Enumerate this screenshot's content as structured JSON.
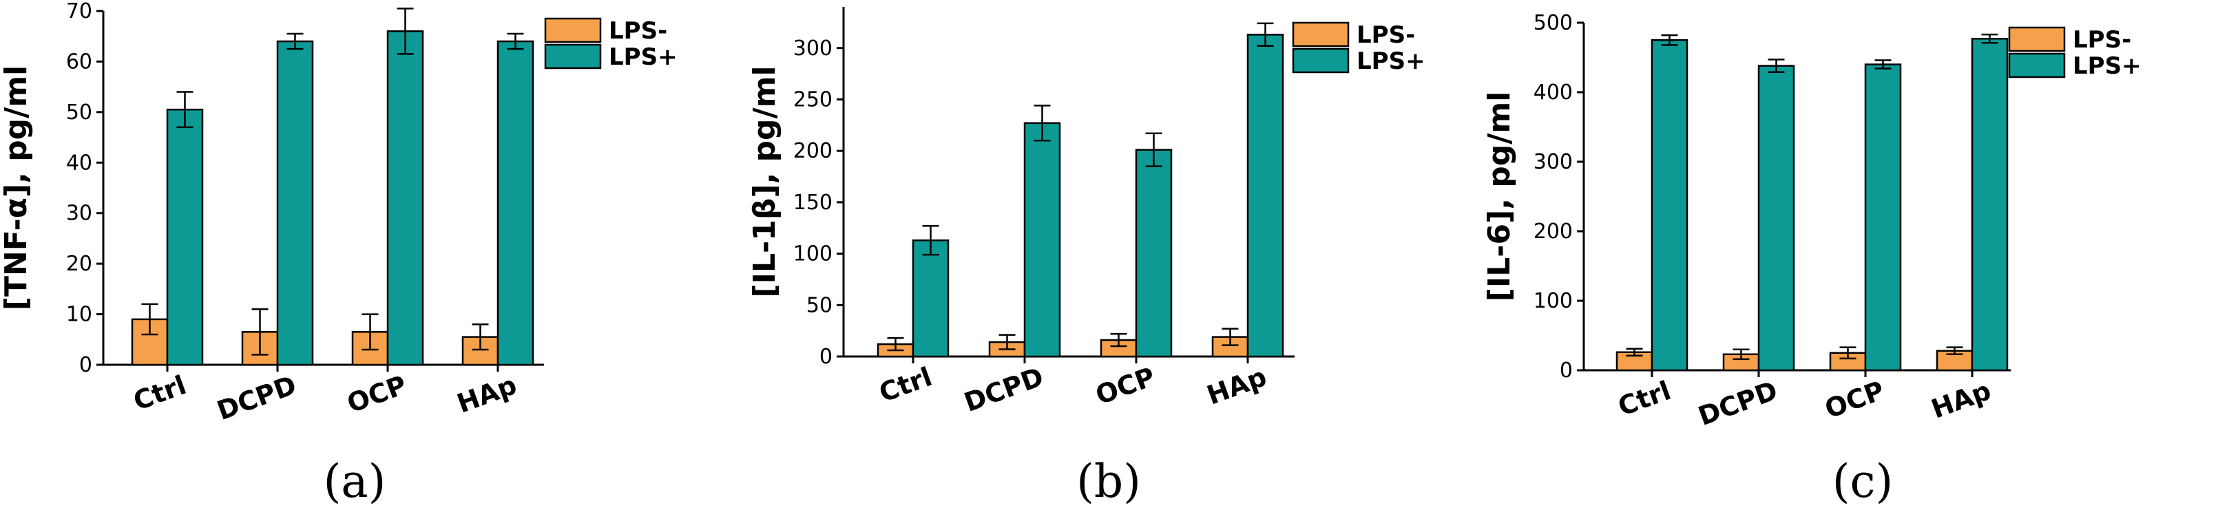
{
  "colors": {
    "lps_minus": "#F5A04A",
    "lps_plus": "#0E9A94"
  },
  "chart_data": [
    {
      "type": "bar",
      "panel_label": "(a)",
      "ylabel": "[TNF-α], pg/ml",
      "categories": [
        "Ctrl",
        "DCPD",
        "OCP",
        "HAp"
      ],
      "ylim": [
        0,
        70
      ],
      "yticks": [
        0,
        10,
        20,
        30,
        40,
        50,
        60,
        70
      ],
      "series": [
        {
          "name": "LPS-",
          "values": [
            9,
            6.5,
            6.5,
            5.5
          ],
          "errors": [
            3,
            4.5,
            3.5,
            2.5
          ]
        },
        {
          "name": "LPS+",
          "values": [
            50.5,
            64,
            66,
            64
          ],
          "errors": [
            3.5,
            1.5,
            4.5,
            1.5
          ]
        }
      ],
      "legend": "top-right"
    },
    {
      "type": "bar",
      "panel_label": "(b)",
      "ylabel": "[IL-1β], pg/ml",
      "categories": [
        "Ctrl",
        "DCPD",
        "OCP",
        "HAp"
      ],
      "ylim": [
        0,
        340
      ],
      "yticks": [
        0,
        50,
        100,
        150,
        200,
        250,
        300
      ],
      "series": [
        {
          "name": "LPS-",
          "values": [
            12,
            14,
            16,
            19
          ],
          "errors": [
            6,
            7,
            6,
            8
          ]
        },
        {
          "name": "LPS+",
          "values": [
            113,
            227,
            201,
            313
          ],
          "errors": [
            14,
            17,
            16,
            11
          ]
        }
      ],
      "legend": "top-right"
    },
    {
      "type": "bar",
      "panel_label": "(c)",
      "ylabel": "[IL-6], pg/ml",
      "categories": [
        "Ctrl",
        "DCPD",
        "OCP",
        "HAp"
      ],
      "ylim": [
        0,
        500
      ],
      "yticks": [
        0,
        100,
        200,
        300,
        400,
        500
      ],
      "series": [
        {
          "name": "LPS-",
          "values": [
            26,
            23,
            25,
            28
          ],
          "errors": [
            5,
            7,
            8,
            5
          ]
        },
        {
          "name": "LPS+",
          "values": [
            475,
            438,
            440,
            477
          ],
          "errors": [
            7,
            9,
            6,
            6
          ]
        }
      ],
      "legend": "top-right"
    }
  ]
}
